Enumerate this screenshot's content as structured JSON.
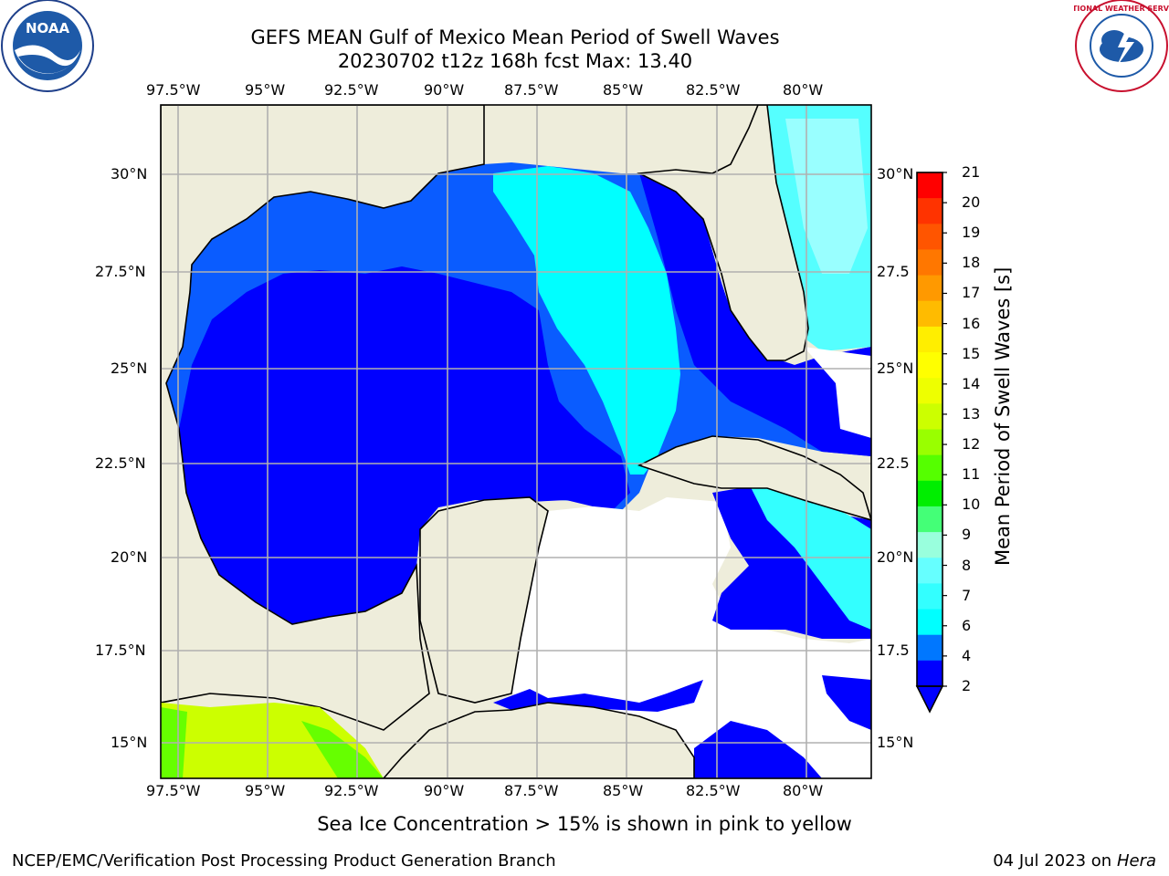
{
  "title": {
    "line1": "GEFS MEAN Gulf of Mexico Mean Period of Swell Waves",
    "line2": "20230702 t12z 168h fcst   Max: 13.40"
  },
  "map": {
    "lon_labels": [
      "97.5°W",
      "95°W",
      "92.5°W",
      "90°W",
      "87.5°W",
      "85°W",
      "82.5°W",
      "80°W"
    ],
    "lat_labels_left": [
      "30°N",
      "27.5°N",
      "25°N",
      "22.5°N",
      "20°N",
      "17.5°N",
      "15°N"
    ],
    "lat_labels_right": [
      "30°N",
      "27.5",
      "25°N",
      "22.5",
      "20°N",
      "17.5",
      "15°N"
    ],
    "land_color": "#eeeddb",
    "grid_color": "#b0b0b0"
  },
  "colorbar": {
    "label": "Mean Period of Swell Waves [s]",
    "ticks": [
      "21",
      "20",
      "19",
      "18",
      "17",
      "16",
      "15",
      "14",
      "13",
      "12",
      "11",
      "10",
      "9",
      "8",
      "7",
      "6",
      "4",
      "2"
    ],
    "colors": [
      "#ff0000",
      "#ff3300",
      "#ff5500",
      "#ff7700",
      "#ff9900",
      "#ffbb00",
      "#ffee00",
      "#ffff00",
      "#eeff00",
      "#ccff00",
      "#99ff00",
      "#55ff00",
      "#00ee00",
      "#44ff77",
      "#99ffdd",
      "#66ffff",
      "#33ffff",
      "#00ffff",
      "#0077ff",
      "#0000ff"
    ]
  },
  "ice_note": "Sea Ice Concentration > 15% is shown in pink to yellow",
  "footer": {
    "left": "NCEP/EMC/Verification Post Processing Product Generation Branch",
    "right_date": "04 Jul 2023 on ",
    "right_machine": "Hera"
  },
  "logos": {
    "noaa_text": "NOAA",
    "nws_text": "NATIONAL WEATHER SERVICE"
  }
}
